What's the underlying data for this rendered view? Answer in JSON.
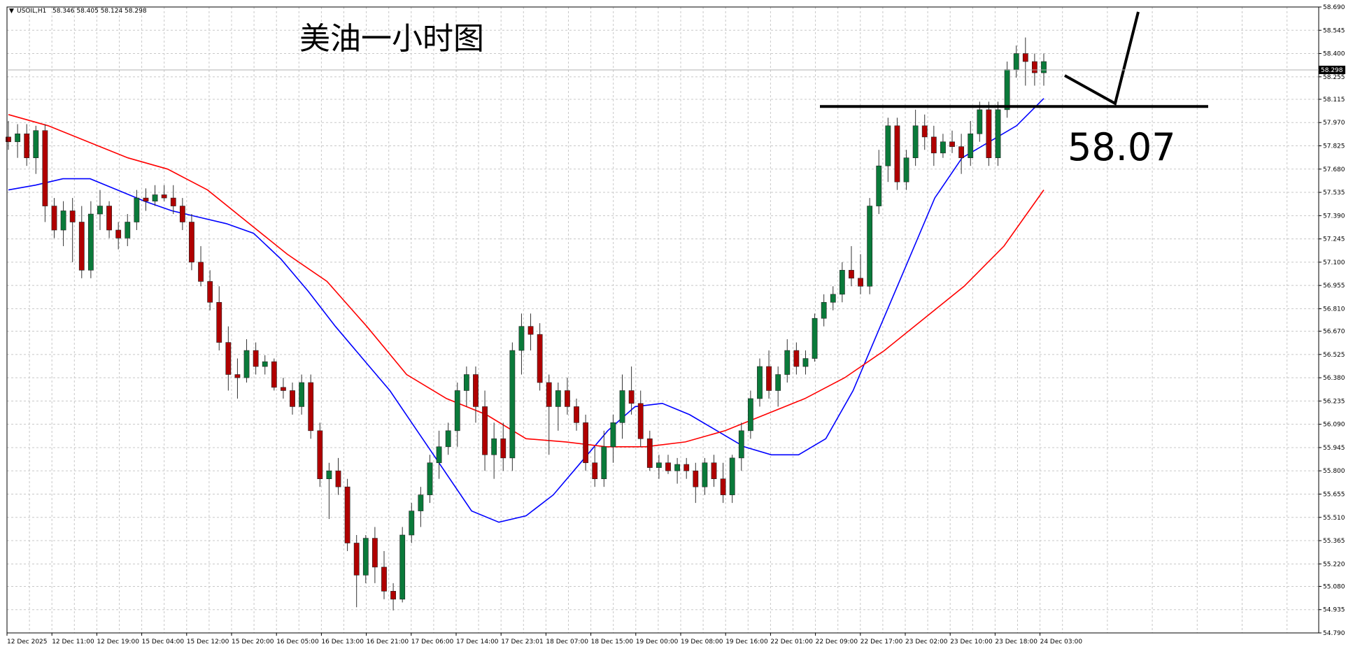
{
  "header": {
    "symbol": "USOIL,H1",
    "ohlc": "58.346 58.405 58.124 58.298"
  },
  "annotation": {
    "title": "美油一小时图",
    "level_label": "58.07"
  },
  "colors": {
    "background": "#ffffff",
    "grid": "#c8c8c8",
    "bull_candle": "#0a7a3a",
    "bear_candle": "#b00000",
    "ma_fast": "#0000ff",
    "ma_slow": "#ff0000",
    "annotation": "#000000"
  },
  "chart_data": {
    "type": "candlestick",
    "symbol": "USOIL",
    "timeframe": "H1",
    "ylim": [
      54.79,
      58.69
    ],
    "y_ticks": [
      "58.690",
      "58.545",
      "58.400",
      "58.255",
      "58.115",
      "57.970",
      "57.825",
      "57.680",
      "57.535",
      "57.390",
      "57.245",
      "57.100",
      "56.955",
      "56.810",
      "56.670",
      "56.525",
      "56.380",
      "56.235",
      "56.090",
      "55.945",
      "55.800",
      "55.655",
      "55.510",
      "55.365",
      "55.220",
      "55.080",
      "54.935",
      "54.790"
    ],
    "x_ticks": [
      "12 Dec 2025",
      "12 Dec 11:00",
      "12 Dec 19:00",
      "15 Dec 04:00",
      "15 Dec 12:00",
      "15 Dec 20:00",
      "16 Dec 05:00",
      "16 Dec 13:00",
      "16 Dec 21:00",
      "17 Dec 06:00",
      "17 Dec 14:00",
      "17 Dec 23:01",
      "18 Dec 07:00",
      "18 Dec 15:00",
      "19 Dec 00:00",
      "19 Dec 08:00",
      "19 Dec 16:00",
      "22 Dec 01:00",
      "22 Dec 09:00",
      "22 Dec 17:00",
      "23 Dec 02:00",
      "23 Dec 10:00",
      "23 Dec 18:00",
      "24 Dec 03:00"
    ],
    "current_price": 58.298,
    "grid": true,
    "support_level": 58.07,
    "ma_series": [
      {
        "color": "blue",
        "values": [
          57.55,
          57.58,
          57.62,
          57.62,
          57.55,
          57.48,
          57.42,
          57.38,
          57.34,
          57.28,
          57.12,
          56.92,
          56.7,
          56.5,
          56.3,
          56.05,
          55.8,
          55.55,
          55.48,
          55.52,
          55.65,
          55.85,
          56.05,
          56.2,
          56.22,
          56.15,
          56.05,
          55.95,
          55.9,
          55.9,
          56.0,
          56.3,
          56.7,
          57.1,
          57.5,
          57.75,
          57.85,
          57.95,
          58.12
        ]
      },
      {
        "color": "red",
        "values": [
          58.02,
          57.95,
          57.85,
          57.75,
          57.68,
          57.55,
          57.35,
          57.15,
          56.98,
          56.7,
          56.4,
          56.25,
          56.15,
          56.0,
          55.98,
          55.95,
          55.95,
          55.98,
          56.05,
          56.15,
          56.25,
          56.38,
          56.55,
          56.75,
          56.95,
          57.2,
          57.55
        ]
      }
    ],
    "candles": [
      {
        "o": 57.88,
        "h": 57.98,
        "l": 57.8,
        "c": 57.85
      },
      {
        "o": 57.85,
        "h": 57.96,
        "l": 57.75,
        "c": 57.9
      },
      {
        "o": 57.9,
        "h": 57.96,
        "l": 57.7,
        "c": 57.75
      },
      {
        "o": 57.75,
        "h": 57.95,
        "l": 57.65,
        "c": 57.92
      },
      {
        "o": 57.92,
        "h": 57.96,
        "l": 57.35,
        "c": 57.45
      },
      {
        "o": 57.45,
        "h": 57.5,
        "l": 57.25,
        "c": 57.3
      },
      {
        "o": 57.3,
        "h": 57.48,
        "l": 57.2,
        "c": 57.42
      },
      {
        "o": 57.42,
        "h": 57.5,
        "l": 57.1,
        "c": 57.35
      },
      {
        "o": 57.35,
        "h": 57.45,
        "l": 57.0,
        "c": 57.05
      },
      {
        "o": 57.05,
        "h": 57.48,
        "l": 57.0,
        "c": 57.4
      },
      {
        "o": 57.4,
        "h": 57.55,
        "l": 57.3,
        "c": 57.45
      },
      {
        "o": 57.45,
        "h": 57.48,
        "l": 57.25,
        "c": 57.3
      },
      {
        "o": 57.3,
        "h": 57.35,
        "l": 57.18,
        "c": 57.25
      },
      {
        "o": 57.25,
        "h": 57.4,
        "l": 57.2,
        "c": 57.35
      },
      {
        "o": 57.35,
        "h": 57.55,
        "l": 57.3,
        "c": 57.5
      },
      {
        "o": 57.5,
        "h": 57.56,
        "l": 57.42,
        "c": 57.48
      },
      {
        "o": 57.48,
        "h": 57.58,
        "l": 57.45,
        "c": 57.52
      },
      {
        "o": 57.52,
        "h": 57.58,
        "l": 57.48,
        "c": 57.5
      },
      {
        "o": 57.5,
        "h": 57.58,
        "l": 57.4,
        "c": 57.45
      },
      {
        "o": 57.45,
        "h": 57.5,
        "l": 57.3,
        "c": 57.35
      },
      {
        "o": 57.35,
        "h": 57.4,
        "l": 57.05,
        "c": 57.1
      },
      {
        "o": 57.1,
        "h": 57.2,
        "l": 56.95,
        "c": 56.98
      },
      {
        "o": 56.98,
        "h": 57.05,
        "l": 56.8,
        "c": 56.85
      },
      {
        "o": 56.85,
        "h": 56.95,
        "l": 56.55,
        "c": 56.6
      },
      {
        "o": 56.6,
        "h": 56.7,
        "l": 56.3,
        "c": 56.4
      },
      {
        "o": 56.4,
        "h": 56.5,
        "l": 56.25,
        "c": 56.38
      },
      {
        "o": 56.38,
        "h": 56.62,
        "l": 56.35,
        "c": 56.55
      },
      {
        "o": 56.55,
        "h": 56.6,
        "l": 56.4,
        "c": 56.45
      },
      {
        "o": 56.45,
        "h": 56.52,
        "l": 56.4,
        "c": 56.48
      },
      {
        "o": 56.48,
        "h": 56.5,
        "l": 56.3,
        "c": 56.32
      },
      {
        "o": 56.32,
        "h": 56.38,
        "l": 56.25,
        "c": 56.3
      },
      {
        "o": 56.3,
        "h": 56.35,
        "l": 56.15,
        "c": 56.2
      },
      {
        "o": 56.2,
        "h": 56.4,
        "l": 56.15,
        "c": 56.35
      },
      {
        "o": 56.35,
        "h": 56.4,
        "l": 56.0,
        "c": 56.05
      },
      {
        "o": 56.05,
        "h": 56.1,
        "l": 55.7,
        "c": 55.75
      },
      {
        "o": 55.75,
        "h": 55.85,
        "l": 55.5,
        "c": 55.8
      },
      {
        "o": 55.8,
        "h": 55.88,
        "l": 55.65,
        "c": 55.7
      },
      {
        "o": 55.7,
        "h": 55.75,
        "l": 55.3,
        "c": 55.35
      },
      {
        "o": 55.35,
        "h": 55.4,
        "l": 54.95,
        "c": 55.15
      },
      {
        "o": 55.15,
        "h": 55.4,
        "l": 55.1,
        "c": 55.38
      },
      {
        "o": 55.38,
        "h": 55.45,
        "l": 55.1,
        "c": 55.2
      },
      {
        "o": 55.2,
        "h": 55.3,
        "l": 55.0,
        "c": 55.05
      },
      {
        "o": 55.05,
        "h": 55.1,
        "l": 54.93,
        "c": 55.0
      },
      {
        "o": 55.0,
        "h": 55.45,
        "l": 54.98,
        "c": 55.4
      },
      {
        "o": 55.4,
        "h": 55.6,
        "l": 55.35,
        "c": 55.55
      },
      {
        "o": 55.55,
        "h": 55.7,
        "l": 55.45,
        "c": 55.65
      },
      {
        "o": 55.65,
        "h": 55.9,
        "l": 55.6,
        "c": 55.85
      },
      {
        "o": 55.85,
        "h": 56.05,
        "l": 55.75,
        "c": 55.95
      },
      {
        "o": 55.95,
        "h": 56.1,
        "l": 55.9,
        "c": 56.05
      },
      {
        "o": 56.05,
        "h": 56.35,
        "l": 55.95,
        "c": 56.3
      },
      {
        "o": 56.3,
        "h": 56.45,
        "l": 56.2,
        "c": 56.4
      },
      {
        "o": 56.4,
        "h": 56.45,
        "l": 56.1,
        "c": 56.2
      },
      {
        "o": 56.2,
        "h": 56.3,
        "l": 55.8,
        "c": 55.9
      },
      {
        "o": 55.9,
        "h": 56.1,
        "l": 55.75,
        "c": 56.0
      },
      {
        "o": 56.0,
        "h": 56.1,
        "l": 55.8,
        "c": 55.88
      },
      {
        "o": 55.88,
        "h": 56.6,
        "l": 55.8,
        "c": 56.55
      },
      {
        "o": 56.55,
        "h": 56.78,
        "l": 56.4,
        "c": 56.7
      },
      {
        "o": 56.7,
        "h": 56.78,
        "l": 56.55,
        "c": 56.65
      },
      {
        "o": 56.65,
        "h": 56.72,
        "l": 56.3,
        "c": 56.35
      },
      {
        "o": 56.35,
        "h": 56.4,
        "l": 55.9,
        "c": 56.2
      },
      {
        "o": 56.2,
        "h": 56.35,
        "l": 56.05,
        "c": 56.3
      },
      {
        "o": 56.3,
        "h": 56.38,
        "l": 56.15,
        "c": 56.2
      },
      {
        "o": 56.2,
        "h": 56.25,
        "l": 56.05,
        "c": 56.1
      },
      {
        "o": 56.1,
        "h": 56.15,
        "l": 55.8,
        "c": 55.85
      },
      {
        "o": 55.85,
        "h": 55.95,
        "l": 55.7,
        "c": 55.75
      },
      {
        "o": 55.75,
        "h": 56.05,
        "l": 55.7,
        "c": 55.95
      },
      {
        "o": 55.95,
        "h": 56.15,
        "l": 55.85,
        "c": 56.1
      },
      {
        "o": 56.1,
        "h": 56.4,
        "l": 56.0,
        "c": 56.3
      },
      {
        "o": 56.3,
        "h": 56.45,
        "l": 56.15,
        "c": 56.22
      },
      {
        "o": 56.22,
        "h": 56.3,
        "l": 55.95,
        "c": 56.0
      },
      {
        "o": 56.0,
        "h": 56.05,
        "l": 55.8,
        "c": 55.82
      },
      {
        "o": 55.82,
        "h": 55.9,
        "l": 55.75,
        "c": 55.85
      },
      {
        "o": 55.85,
        "h": 55.9,
        "l": 55.78,
        "c": 55.8
      },
      {
        "o": 55.8,
        "h": 55.88,
        "l": 55.72,
        "c": 55.84
      },
      {
        "o": 55.84,
        "h": 55.88,
        "l": 55.75,
        "c": 55.8
      },
      {
        "o": 55.8,
        "h": 55.85,
        "l": 55.6,
        "c": 55.7
      },
      {
        "o": 55.7,
        "h": 55.88,
        "l": 55.65,
        "c": 55.85
      },
      {
        "o": 55.85,
        "h": 55.9,
        "l": 55.7,
        "c": 55.75
      },
      {
        "o": 55.75,
        "h": 55.85,
        "l": 55.6,
        "c": 55.65
      },
      {
        "o": 55.65,
        "h": 55.9,
        "l": 55.6,
        "c": 55.88
      },
      {
        "o": 55.88,
        "h": 56.1,
        "l": 55.8,
        "c": 56.05
      },
      {
        "o": 56.05,
        "h": 56.3,
        "l": 56.0,
        "c": 56.25
      },
      {
        "o": 56.25,
        "h": 56.5,
        "l": 56.2,
        "c": 56.45
      },
      {
        "o": 56.45,
        "h": 56.55,
        "l": 56.25,
        "c": 56.3
      },
      {
        "o": 56.3,
        "h": 56.45,
        "l": 56.2,
        "c": 56.4
      },
      {
        "o": 56.4,
        "h": 56.62,
        "l": 56.35,
        "c": 56.55
      },
      {
        "o": 56.55,
        "h": 56.6,
        "l": 56.4,
        "c": 56.45
      },
      {
        "o": 56.45,
        "h": 56.55,
        "l": 56.4,
        "c": 56.5
      },
      {
        "o": 56.5,
        "h": 56.78,
        "l": 56.48,
        "c": 56.75
      },
      {
        "o": 56.75,
        "h": 56.9,
        "l": 56.7,
        "c": 56.85
      },
      {
        "o": 56.85,
        "h": 56.95,
        "l": 56.8,
        "c": 56.9
      },
      {
        "o": 56.9,
        "h": 57.1,
        "l": 56.85,
        "c": 57.05
      },
      {
        "o": 57.05,
        "h": 57.2,
        "l": 56.95,
        "c": 57.0
      },
      {
        "o": 57.0,
        "h": 57.15,
        "l": 56.9,
        "c": 56.95
      },
      {
        "o": 56.95,
        "h": 57.5,
        "l": 56.9,
        "c": 57.45
      },
      {
        "o": 57.45,
        "h": 57.8,
        "l": 57.4,
        "c": 57.7
      },
      {
        "o": 57.7,
        "h": 58.0,
        "l": 57.6,
        "c": 57.95
      },
      {
        "o": 57.95,
        "h": 58.0,
        "l": 57.55,
        "c": 57.6
      },
      {
        "o": 57.6,
        "h": 57.8,
        "l": 57.55,
        "c": 57.75
      },
      {
        "o": 57.75,
        "h": 58.05,
        "l": 57.7,
        "c": 57.95
      },
      {
        "o": 57.95,
        "h": 58.02,
        "l": 57.8,
        "c": 57.88
      },
      {
        "o": 57.88,
        "h": 57.95,
        "l": 57.7,
        "c": 57.78
      },
      {
        "o": 57.78,
        "h": 57.9,
        "l": 57.75,
        "c": 57.85
      },
      {
        "o": 57.85,
        "h": 57.92,
        "l": 57.78,
        "c": 57.82
      },
      {
        "o": 57.82,
        "h": 57.9,
        "l": 57.65,
        "c": 57.75
      },
      {
        "o": 57.75,
        "h": 57.98,
        "l": 57.7,
        "c": 57.9
      },
      {
        "o": 57.9,
        "h": 58.1,
        "l": 57.85,
        "c": 58.05
      },
      {
        "o": 58.05,
        "h": 58.1,
        "l": 57.7,
        "c": 57.75
      },
      {
        "o": 57.75,
        "h": 58.1,
        "l": 57.7,
        "c": 58.05
      },
      {
        "o": 58.05,
        "h": 58.35,
        "l": 58.0,
        "c": 58.3
      },
      {
        "o": 58.3,
        "h": 58.45,
        "l": 58.25,
        "c": 58.4
      },
      {
        "o": 58.4,
        "h": 58.5,
        "l": 58.2,
        "c": 58.35
      },
      {
        "o": 58.35,
        "h": 58.4,
        "l": 58.2,
        "c": 58.28
      },
      {
        "o": 58.28,
        "h": 58.4,
        "l": 58.2,
        "c": 58.35
      }
    ]
  }
}
